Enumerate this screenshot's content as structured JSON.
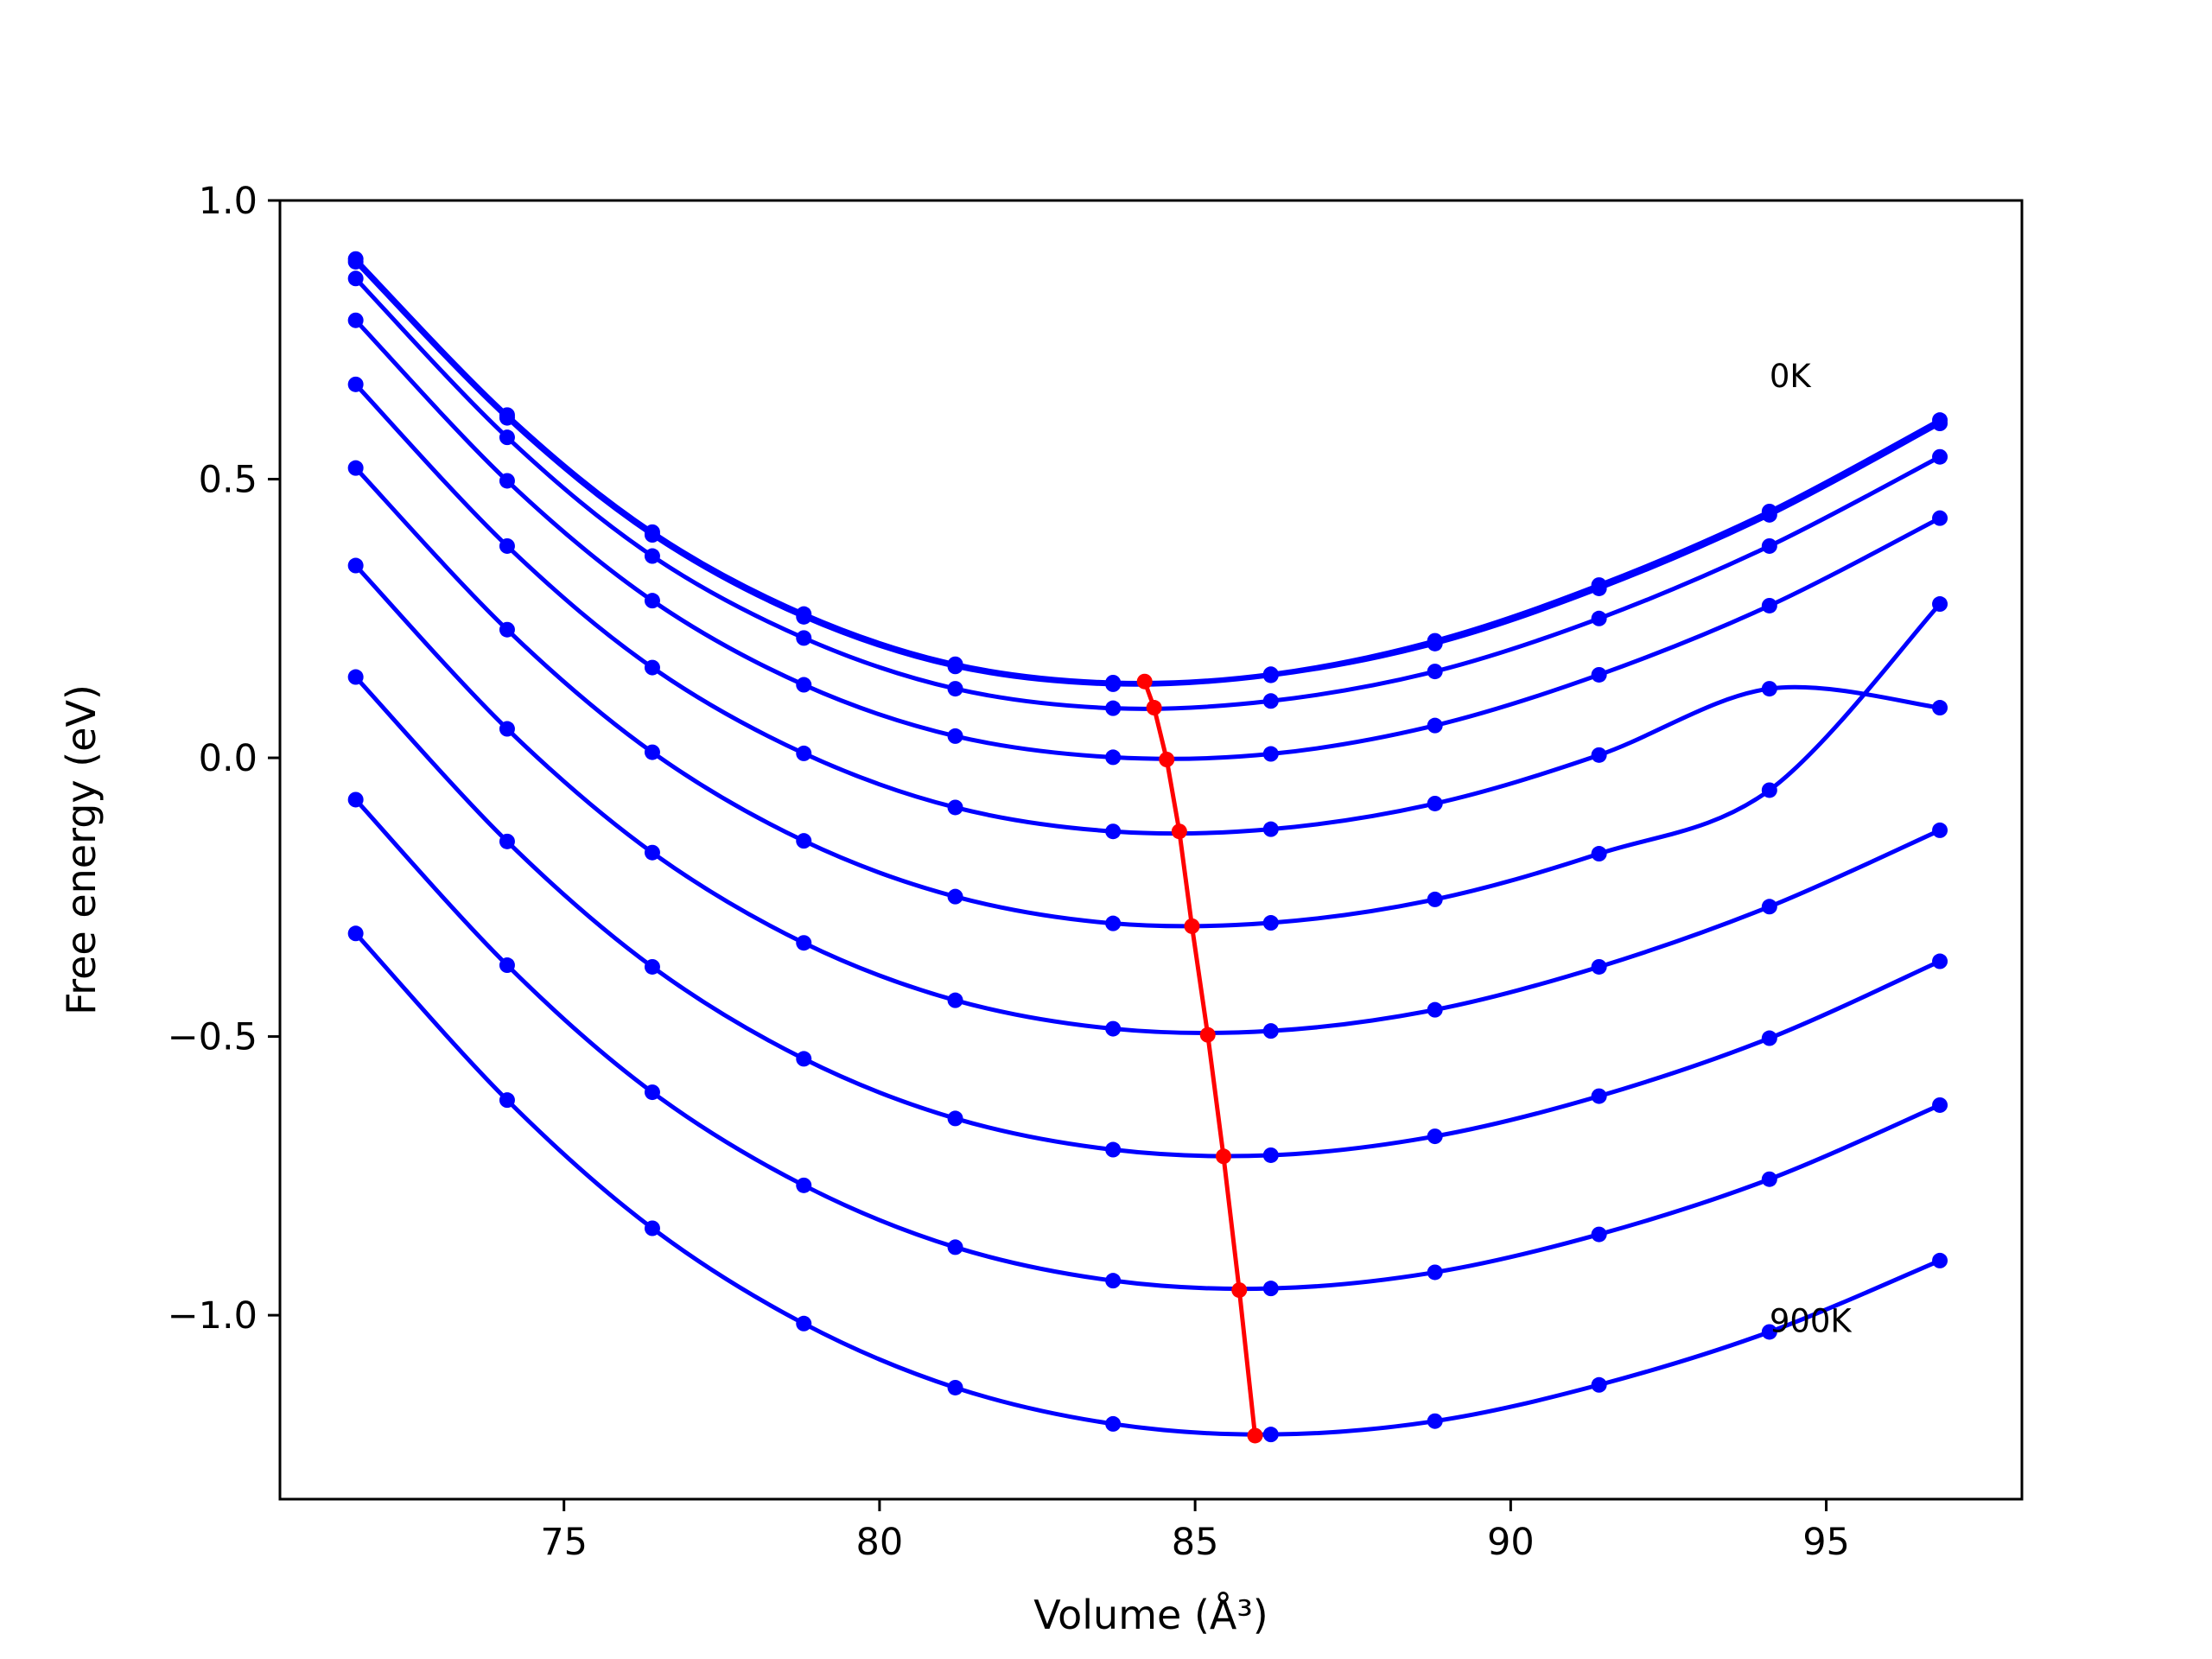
{
  "chart_data": {
    "type": "line",
    "title": "",
    "xlabel": "Volume (Å³)",
    "ylabel": "Free energy (eV)",
    "xlim": [
      70.5,
      98.1
    ],
    "ylim": [
      -1.33,
      1.0
    ],
    "xticks": [
      75,
      80,
      85,
      90,
      95
    ],
    "xtick_labels": [
      "75",
      "80",
      "85",
      "90",
      "95"
    ],
    "yticks": [
      1.0,
      0.5,
      0.0,
      -0.5,
      -1.0
    ],
    "ytick_labels": [
      "1.0",
      "0.5",
      "0.0",
      "−0.5",
      "−1.0"
    ],
    "grid": false,
    "legend": "none",
    "colors": {
      "curves": "#0000ff",
      "minima": "#ff0000",
      "frame": "#000000"
    },
    "annotations": [
      {
        "text": "0K",
        "x": 94.1,
        "y": 0.665
      },
      {
        "text": "900K",
        "x": 94.1,
        "y": -1.03
      }
    ],
    "x": [
      71.7,
      74.1,
      76.4,
      78.8,
      81.2,
      83.7,
      86.2,
      88.8,
      91.4,
      94.1,
      96.8
    ],
    "series": [
      {
        "values": [
          0.895,
          0.615,
          0.405,
          0.258,
          0.168,
          0.135,
          0.15,
          0.21,
          0.31,
          0.442,
          0.606
        ]
      },
      {
        "values": [
          0.89,
          0.61,
          0.4,
          0.253,
          0.164,
          0.132,
          0.148,
          0.205,
          0.304,
          0.436,
          0.6
        ]
      },
      {
        "values": [
          0.86,
          0.575,
          0.362,
          0.215,
          0.124,
          0.089,
          0.102,
          0.155,
          0.25,
          0.38,
          0.54
        ]
      },
      {
        "values": [
          0.785,
          0.497,
          0.282,
          0.131,
          0.039,
          0.001,
          0.007,
          0.058,
          0.149,
          0.273,
          0.43
        ]
      },
      {
        "values": [
          0.67,
          0.38,
          0.162,
          0.008,
          -0.089,
          -0.132,
          -0.128,
          -0.082,
          0.005,
          0.124,
          0.09
        ]
      },
      {
        "values": [
          0.52,
          0.23,
          0.01,
          -0.149,
          -0.249,
          -0.297,
          -0.296,
          -0.254,
          -0.172,
          -0.058,
          0.276
        ]
      },
      {
        "values": [
          0.345,
          0.052,
          -0.17,
          -0.332,
          -0.435,
          -0.486,
          -0.49,
          -0.452,
          -0.375,
          -0.267,
          -0.13
        ]
      },
      {
        "values": [
          0.145,
          -0.15,
          -0.375,
          -0.54,
          -0.647,
          -0.703,
          -0.713,
          -0.679,
          -0.607,
          -0.503,
          -0.365
        ]
      },
      {
        "values": [
          -0.075,
          -0.372,
          -0.6,
          -0.767,
          -0.878,
          -0.938,
          -0.952,
          -0.923,
          -0.855,
          -0.756,
          -0.623
        ]
      },
      {
        "values": [
          -0.315,
          -0.614,
          -0.844,
          -1.015,
          -1.13,
          -1.195,
          -1.214,
          -1.19,
          -1.125,
          -1.03,
          -0.902
        ]
      }
    ],
    "minima": {
      "x": [
        84.2,
        84.35,
        84.55,
        84.75,
        84.95,
        85.2,
        85.45,
        85.7,
        85.95
      ],
      "y": [
        0.137,
        0.09,
        -0.003,
        -0.132,
        -0.302,
        -0.497,
        -0.715,
        -0.955,
        -1.216
      ]
    }
  }
}
